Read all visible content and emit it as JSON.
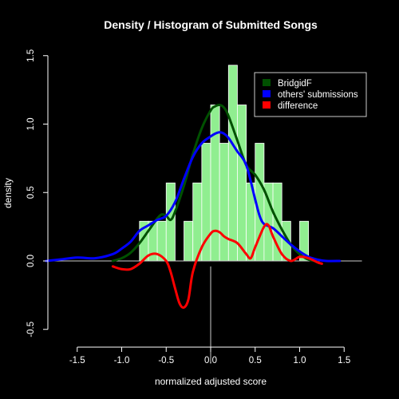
{
  "chart_data": {
    "type": "bar",
    "title": "Density / Histogram of Submitted Songs",
    "xlabel": "normalized adjusted score",
    "ylabel": "density",
    "xlim": [
      -1.85,
      1.7
    ],
    "ylim": [
      -0.75,
      1.5
    ],
    "xticks": [
      -1.5,
      -1.0,
      -0.5,
      0.0,
      0.5,
      1.0,
      1.5
    ],
    "xtick_labels": [
      "-1.5",
      "-1.0",
      "-0.5",
      "0.0",
      "0.5",
      "1.0",
      "1.5"
    ],
    "yticks": [
      -0.5,
      0.0,
      0.5,
      1.0,
      1.5
    ],
    "ytick_labels": [
      "-0.5",
      "0.0",
      "0.5",
      "1.0",
      "1.5"
    ],
    "legend_position": "top-right",
    "colors": {
      "background": "#000000",
      "histogram": "#90EE90",
      "bridgidf": "#005000",
      "others": "#0000FF",
      "difference": "#FF0000",
      "axis": "#FFFFFF"
    },
    "histogram": {
      "bin_width": 0.1,
      "bins": [
        {
          "x0": -0.8,
          "x1": -0.7,
          "density": 0.29
        },
        {
          "x0": -0.7,
          "x1": -0.6,
          "density": 0.29
        },
        {
          "x0": -0.6,
          "x1": -0.5,
          "density": 0.29
        },
        {
          "x0": -0.5,
          "x1": -0.4,
          "density": 0.57
        },
        {
          "x0": -0.4,
          "x1": -0.3,
          "density": 0.0
        },
        {
          "x0": -0.3,
          "x1": -0.2,
          "density": 0.29
        },
        {
          "x0": -0.2,
          "x1": -0.1,
          "density": 0.57
        },
        {
          "x0": -0.1,
          "x1": 0.0,
          "density": 0.86
        },
        {
          "x0": 0.0,
          "x1": 0.1,
          "density": 1.14
        },
        {
          "x0": 0.1,
          "x1": 0.2,
          "density": 0.86
        },
        {
          "x0": 0.2,
          "x1": 0.3,
          "density": 1.43
        },
        {
          "x0": 0.3,
          "x1": 0.4,
          "density": 1.14
        },
        {
          "x0": 0.4,
          "x1": 0.5,
          "density": 0.57
        },
        {
          "x0": 0.5,
          "x1": 0.6,
          "density": 0.86
        },
        {
          "x0": 0.6,
          "x1": 0.7,
          "density": 0.57
        },
        {
          "x0": 0.7,
          "x1": 0.8,
          "density": 0.57
        },
        {
          "x0": 0.8,
          "x1": 0.9,
          "density": 0.29
        },
        {
          "x0": 0.9,
          "x1": 1.0,
          "density": 0.0
        },
        {
          "x0": 1.0,
          "x1": 1.1,
          "density": 0.29
        }
      ]
    },
    "series": [
      {
        "name": "BridgidF",
        "x": [
          -1.1,
          -1.0,
          -0.9,
          -0.8,
          -0.7,
          -0.6,
          -0.55,
          -0.5,
          -0.45,
          -0.4,
          -0.3,
          -0.2,
          -0.1,
          0.0,
          0.05,
          0.1,
          0.15,
          0.2,
          0.3,
          0.4,
          0.5,
          0.6,
          0.7,
          0.8,
          0.9,
          1.0,
          1.1,
          1.2
        ],
        "y": [
          0.0,
          0.02,
          0.06,
          0.13,
          0.22,
          0.31,
          0.34,
          0.33,
          0.3,
          0.36,
          0.55,
          0.78,
          0.97,
          1.1,
          1.13,
          1.14,
          1.12,
          1.06,
          0.88,
          0.7,
          0.63,
          0.52,
          0.36,
          0.23,
          0.12,
          0.05,
          0.01,
          0.0
        ]
      },
      {
        "name": "others' submissions",
        "x": [
          -1.85,
          -1.7,
          -1.5,
          -1.3,
          -1.1,
          -1.0,
          -0.9,
          -0.8,
          -0.7,
          -0.6,
          -0.5,
          -0.4,
          -0.3,
          -0.2,
          -0.1,
          0.0,
          0.05,
          0.1,
          0.15,
          0.2,
          0.25,
          0.3,
          0.4,
          0.5,
          0.55,
          0.6,
          0.7,
          0.8,
          0.9,
          1.0,
          1.1,
          1.2,
          1.3,
          1.45
        ],
        "y": [
          0.0,
          0.01,
          0.025,
          0.02,
          0.05,
          0.09,
          0.14,
          0.22,
          0.26,
          0.3,
          0.33,
          0.43,
          0.6,
          0.76,
          0.86,
          0.91,
          0.93,
          0.94,
          0.93,
          0.9,
          0.85,
          0.8,
          0.7,
          0.45,
          0.33,
          0.27,
          0.24,
          0.18,
          0.12,
          0.07,
          0.03,
          0.01,
          0.0,
          0.0
        ]
      },
      {
        "name": "difference",
        "x": [
          -1.1,
          -1.0,
          -0.9,
          -0.8,
          -0.7,
          -0.6,
          -0.5,
          -0.45,
          -0.4,
          -0.35,
          -0.3,
          -0.25,
          -0.2,
          -0.1,
          0.0,
          0.05,
          0.1,
          0.15,
          0.2,
          0.3,
          0.4,
          0.45,
          0.5,
          0.6,
          0.65,
          0.7,
          0.8,
          0.9,
          1.0,
          1.1,
          1.2,
          1.25
        ],
        "y": [
          -0.04,
          -0.06,
          -0.06,
          -0.02,
          0.04,
          0.05,
          0.0,
          -0.08,
          -0.2,
          -0.31,
          -0.34,
          -0.28,
          -0.08,
          0.1,
          0.2,
          0.22,
          0.21,
          0.18,
          0.16,
          0.13,
          0.05,
          0.02,
          0.1,
          0.25,
          0.26,
          0.18,
          0.05,
          0.0,
          0.03,
          0.02,
          -0.01,
          -0.02
        ]
      }
    ]
  }
}
